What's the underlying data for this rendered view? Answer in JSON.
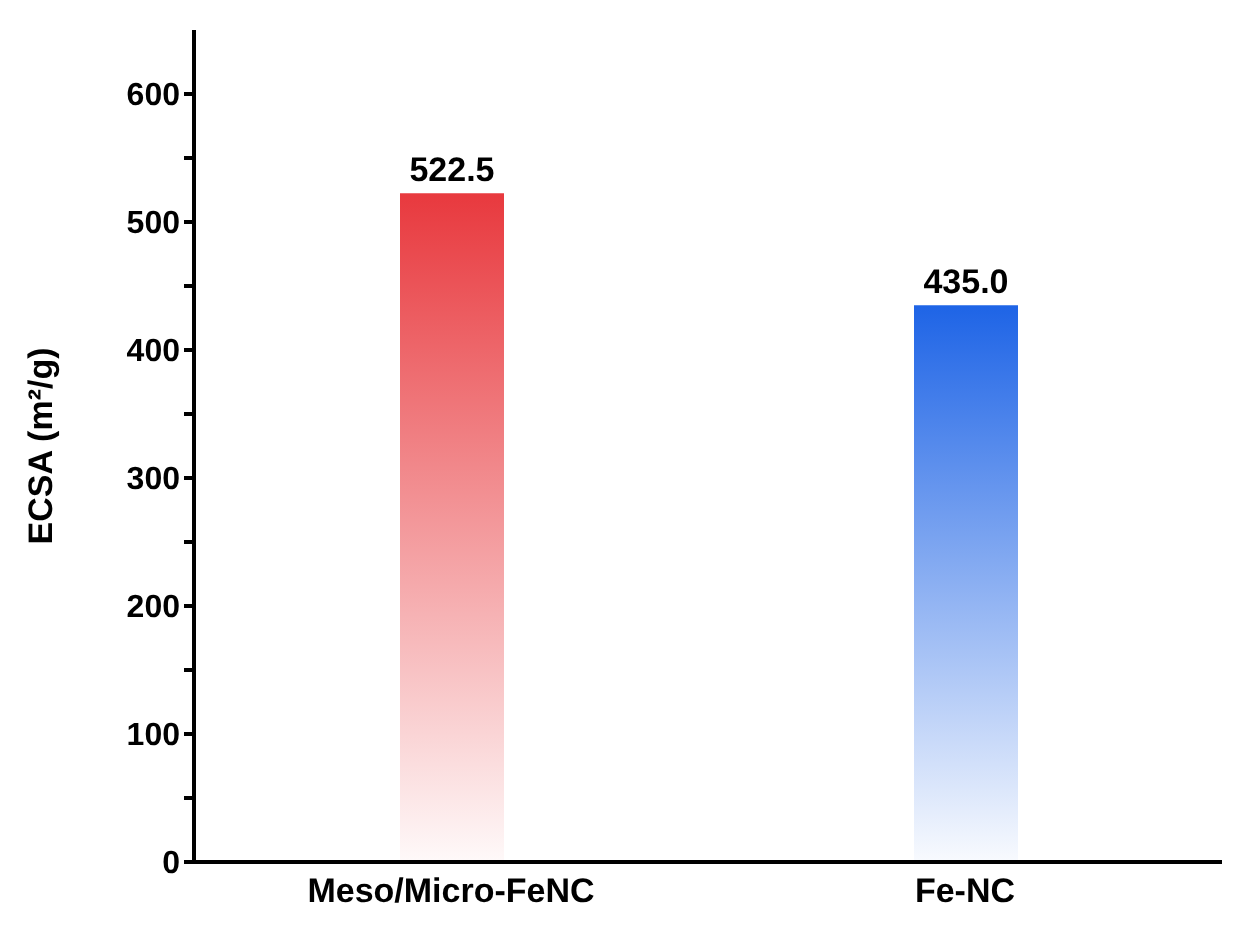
{
  "chart_data": {
    "type": "bar",
    "ylabel": "ECSA (m²/g)",
    "categories": [
      "Meso/Micro-FeNC",
      "Fe-NC"
    ],
    "values": [
      522.5,
      435.0
    ],
    "value_labels": [
      "522.5",
      "435.0"
    ],
    "colors": [
      "#e8393e",
      "#1e64e6"
    ],
    "ylim": [
      0,
      650
    ],
    "yticks": [
      0,
      {
        "value": 50,
        "label": null
      },
      100,
      {
        "value": 150,
        "label": null
      },
      200,
      {
        "value": 250,
        "label": null
      },
      300,
      {
        "value": 350,
        "label": null
      },
      400,
      {
        "value": 450,
        "label": null
      },
      500,
      {
        "value": 550,
        "label": null
      },
      600
    ],
    "grid": false,
    "legend": false
  }
}
